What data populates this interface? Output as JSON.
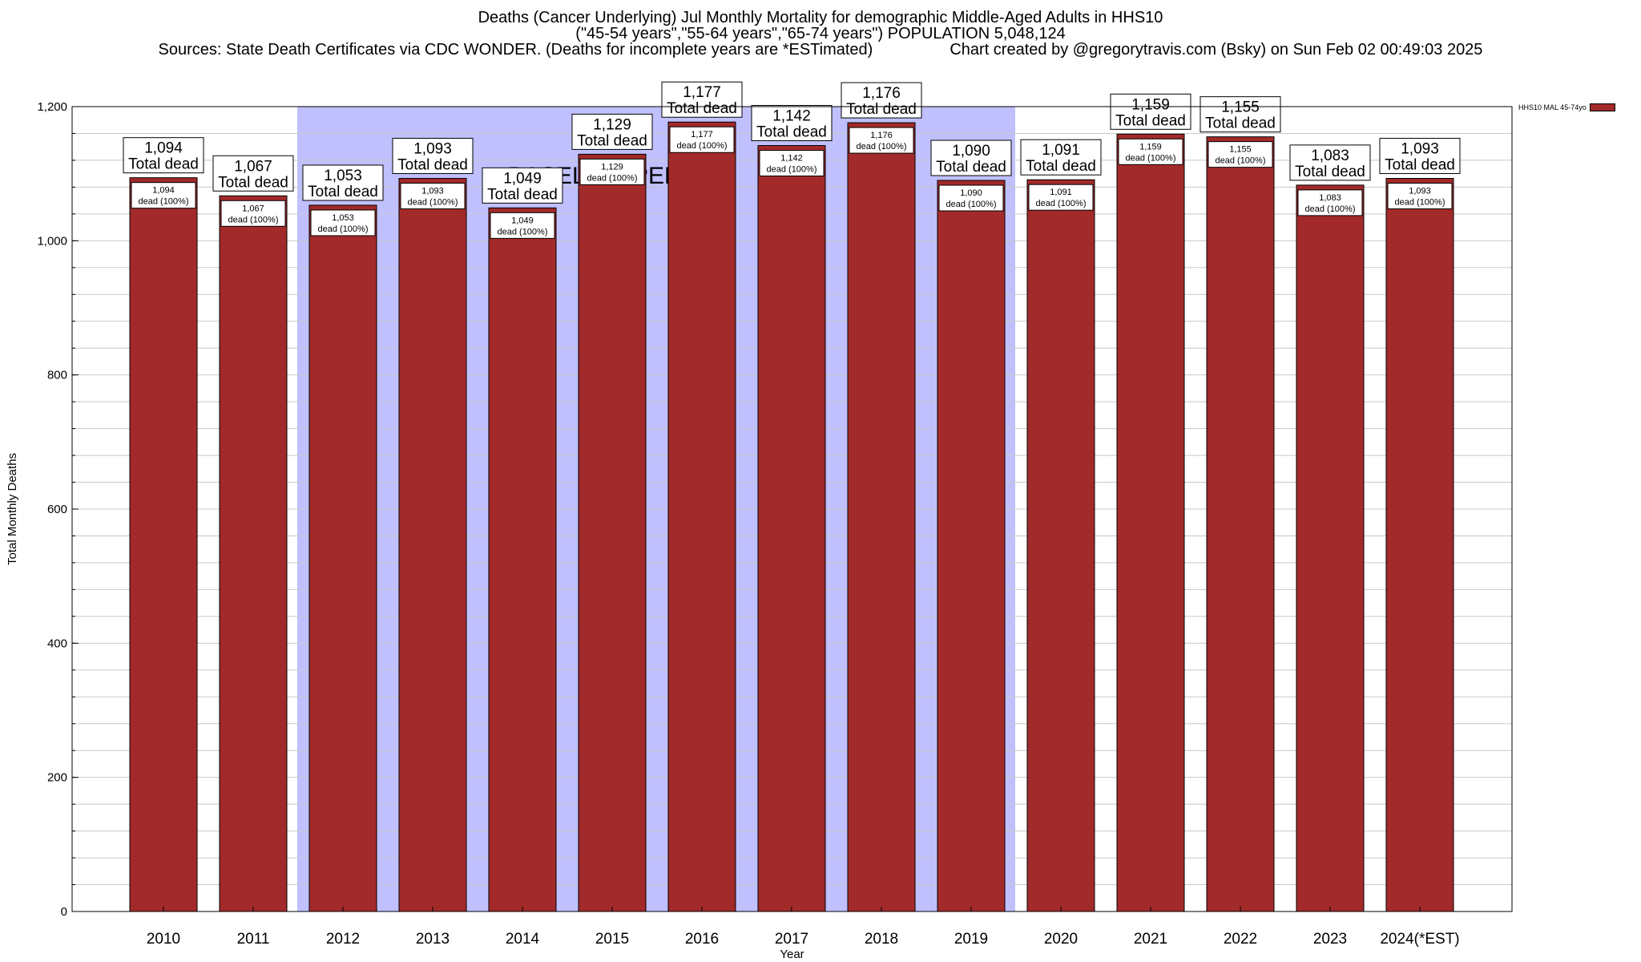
{
  "title": {
    "line1": "Deaths (Cancer Underlying) Jul Monthly Mortality for demographic Middle-Aged Adults in HHS10",
    "line2": "(\"45-54 years\",\"55-64 years\",\"65-74 years\") POPULATION 5,048,124",
    "line3_left": "Sources: State Death Certificates via CDC WONDER. (Deaths for incomplete years are *ESTimated)",
    "line3_right": "Chart created by @gregorytravis.com (Bsky) on Sun Feb 02 00:49:03 2025"
  },
  "legend": {
    "label": "HHS10 MAL 45-74yo"
  },
  "chart_data": {
    "type": "bar",
    "categories": [
      "2010",
      "2011",
      "2012",
      "2013",
      "2014",
      "2015",
      "2016",
      "2017",
      "2018",
      "2019",
      "2020",
      "2021",
      "2022",
      "2023",
      "2024(*EST)"
    ],
    "series": [
      {
        "name": "HHS10 MAL 45-74yo",
        "values": [
          1094,
          1067,
          1053,
          1093,
          1049,
          1129,
          1177,
          1142,
          1176,
          1090,
          1091,
          1159,
          1155,
          1083,
          1093
        ]
      }
    ],
    "top_labels": [
      "1,094",
      "1,067",
      "1,053",
      "1,093",
      "1,049",
      "1,129",
      "1,177",
      "1,142",
      "1,176",
      "1,090",
      "1,091",
      "1,159",
      "1,155",
      "1,083",
      "1,093"
    ],
    "top_label_suffix": "Total dead",
    "inner_label_suffix": "dead (100%)",
    "xlabel": "Year",
    "ylabel": "Total Monthly Deaths",
    "ylim": [
      0,
      1200
    ],
    "yticks": [
      0,
      200,
      400,
      600,
      800,
      1000,
      1200
    ],
    "ytick_labels": [
      "0",
      "200",
      "400",
      "600",
      "800",
      "1,000",
      "1,200"
    ],
    "grid": true,
    "baseline": {
      "label": "BASELINE PERIOD",
      "start": "2012",
      "end": "2019"
    },
    "colors": {
      "bar": "#a32a2a",
      "baseline_fill": "#c0c0ff",
      "grid": "#c8c8c8"
    },
    "legend_position": "top-right"
  }
}
